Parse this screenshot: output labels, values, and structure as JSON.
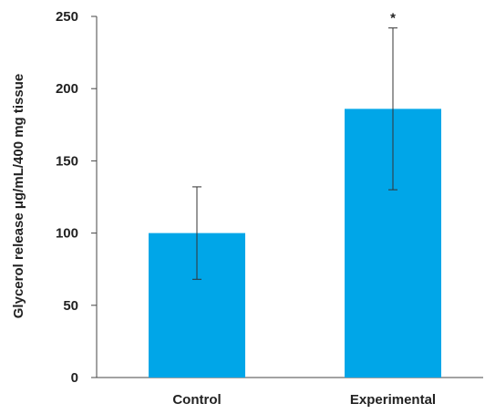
{
  "chart_data": {
    "type": "bar",
    "title": "",
    "xlabel": "",
    "ylabel": "Glycerol release μg/mL/400 mg tissue",
    "categories": [
      "Control",
      "Experimental"
    ],
    "values": [
      100,
      186
    ],
    "error_low": [
      68,
      130
    ],
    "error_high": [
      132,
      242
    ],
    "annotations": [
      "",
      "*"
    ],
    "ylim": [
      0,
      250
    ],
    "yticks": [
      0,
      50,
      100,
      150,
      200,
      250
    ],
    "ytick_labels": [
      "0",
      "50",
      "100",
      "150",
      "200",
      "250"
    ],
    "grid": false,
    "bar_color": "#00a6e8",
    "axis_color": "#444444"
  }
}
